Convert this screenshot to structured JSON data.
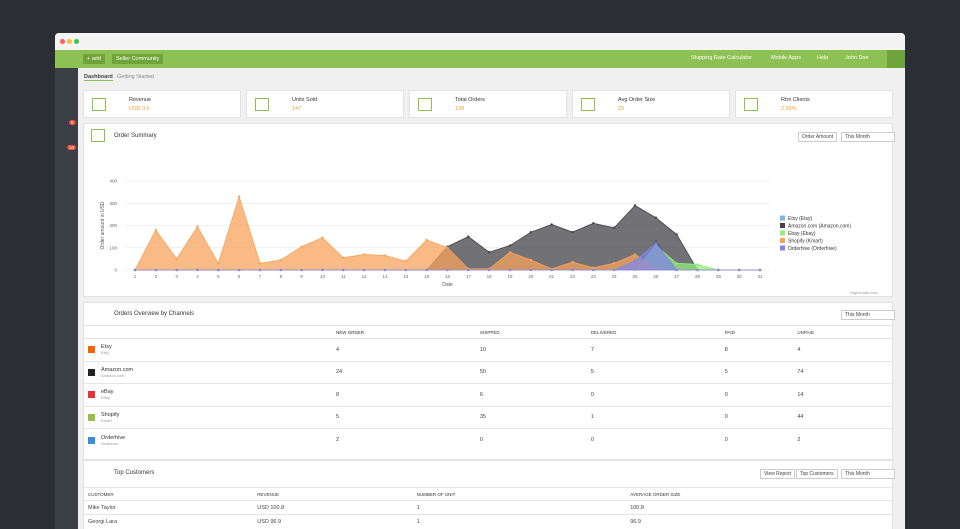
{
  "nav": {
    "add": "+ add",
    "community": "Seller Community",
    "links": [
      "Shipping Rate Calculator",
      "Mobile Apps",
      "Help",
      "John Doe"
    ]
  },
  "badges": [
    "5",
    "10"
  ],
  "tabs": [
    "Dashboard",
    "Getting Started"
  ],
  "stats": [
    {
      "label": "Revenue",
      "value": "USD 3 k"
    },
    {
      "label": "Units Sold",
      "value": "147"
    },
    {
      "label": "Total Orders",
      "value": "128"
    },
    {
      "label": "Avg Order Size",
      "value": "23"
    },
    {
      "label": "Rtrn Clients",
      "value": "2.92%"
    }
  ],
  "order_summary": {
    "title": "Order Summary",
    "controls": [
      "Order Amount",
      "This Month"
    ],
    "credit": "Highcharts.com",
    "chart": {
      "type": "area",
      "y_label": "Order amount in USD",
      "x_label": "Date",
      "categories": [
        "1",
        "2",
        "3",
        "4",
        "5",
        "6",
        "7",
        "8",
        "9",
        "10",
        "11",
        "12",
        "13",
        "14",
        "15",
        "16",
        "17",
        "18",
        "19",
        "20",
        "21",
        "22",
        "23",
        "24",
        "25",
        "26",
        "27",
        "28",
        "29",
        "30",
        "31"
      ],
      "ylim": [
        0,
        400
      ],
      "yticks": [
        0,
        100,
        200,
        300,
        400
      ],
      "grid": true,
      "series": [
        {
          "name": "Etsy (Etsy)",
          "color": "#7cb5ec",
          "values": [
            0,
            0,
            0,
            0,
            0,
            0,
            0,
            0,
            0,
            0,
            0,
            0,
            0,
            0,
            0,
            0,
            0,
            0,
            0,
            0,
            0,
            0,
            0,
            0,
            0,
            130,
            0,
            0,
            0,
            0,
            0
          ]
        },
        {
          "name": "Amazon.com (Amazon.com)",
          "color": "#434348",
          "values": [
            0,
            0,
            0,
            0,
            0,
            0,
            0,
            0,
            0,
            0,
            0,
            0,
            0,
            0,
            0,
            105,
            150,
            80,
            110,
            170,
            205,
            170,
            210,
            190,
            290,
            235,
            160,
            0,
            0,
            0,
            0
          ]
        },
        {
          "name": "Ebay (Ebay)",
          "color": "#90ed7d",
          "values": [
            0,
            0,
            0,
            0,
            0,
            0,
            0,
            0,
            0,
            0,
            0,
            0,
            0,
            0,
            0,
            0,
            0,
            0,
            0,
            0,
            0,
            0,
            0,
            0,
            0,
            110,
            30,
            25,
            0,
            0,
            0
          ]
        },
        {
          "name": "Shopify (Kmart)",
          "color": "#f7a35c",
          "values": [
            0,
            180,
            50,
            195,
            30,
            330,
            30,
            45,
            105,
            145,
            55,
            70,
            65,
            40,
            135,
            100,
            5,
            5,
            80,
            45,
            5,
            35,
            10,
            30,
            70,
            5,
            0,
            0,
            0,
            0,
            0
          ]
        },
        {
          "name": "Orderhive (Orderhive)",
          "color": "#8085e9",
          "values": [
            0,
            0,
            0,
            0,
            0,
            0,
            0,
            0,
            0,
            0,
            0,
            0,
            0,
            0,
            0,
            0,
            0,
            0,
            0,
            0,
            0,
            0,
            0,
            0,
            40,
            120,
            0,
            0,
            0,
            0,
            0
          ]
        }
      ]
    }
  },
  "channels": {
    "title": "Orders Overview by Channels",
    "control": "This Month",
    "columns": [
      "NEW ORDER",
      "SHIPPED",
      "DELIVERED",
      "PAID",
      "UNPAID"
    ],
    "rows": [
      {
        "name": "Etsy",
        "sub": "Etsy",
        "values": [
          4,
          10,
          7,
          8,
          4
        ]
      },
      {
        "name": "Amazon.com",
        "sub": "Amazon.com",
        "values": [
          24,
          50,
          5,
          5,
          74
        ]
      },
      {
        "name": "eBay",
        "sub": "Ebay",
        "values": [
          8,
          6,
          0,
          0,
          14
        ]
      },
      {
        "name": "Shopify",
        "sub": "Kmart",
        "values": [
          5,
          35,
          1,
          0,
          44
        ]
      },
      {
        "name": "Orderhive",
        "sub": "Orderhive",
        "values": [
          2,
          0,
          0,
          0,
          2
        ]
      }
    ]
  },
  "customers": {
    "title": "Top Customers",
    "controls": [
      "View Report",
      "Top Customers",
      "This Month"
    ],
    "columns": [
      "CUSTOMER",
      "REVENUE",
      "NUMBER OF UNIT",
      "AVERAGE ORDER SIZE"
    ],
    "rows": [
      [
        "Mike Taylor",
        "USD 100.8",
        "1",
        "100.8"
      ],
      [
        "Georgi Lara",
        "USD 96.9",
        "1",
        "96.9"
      ]
    ]
  }
}
